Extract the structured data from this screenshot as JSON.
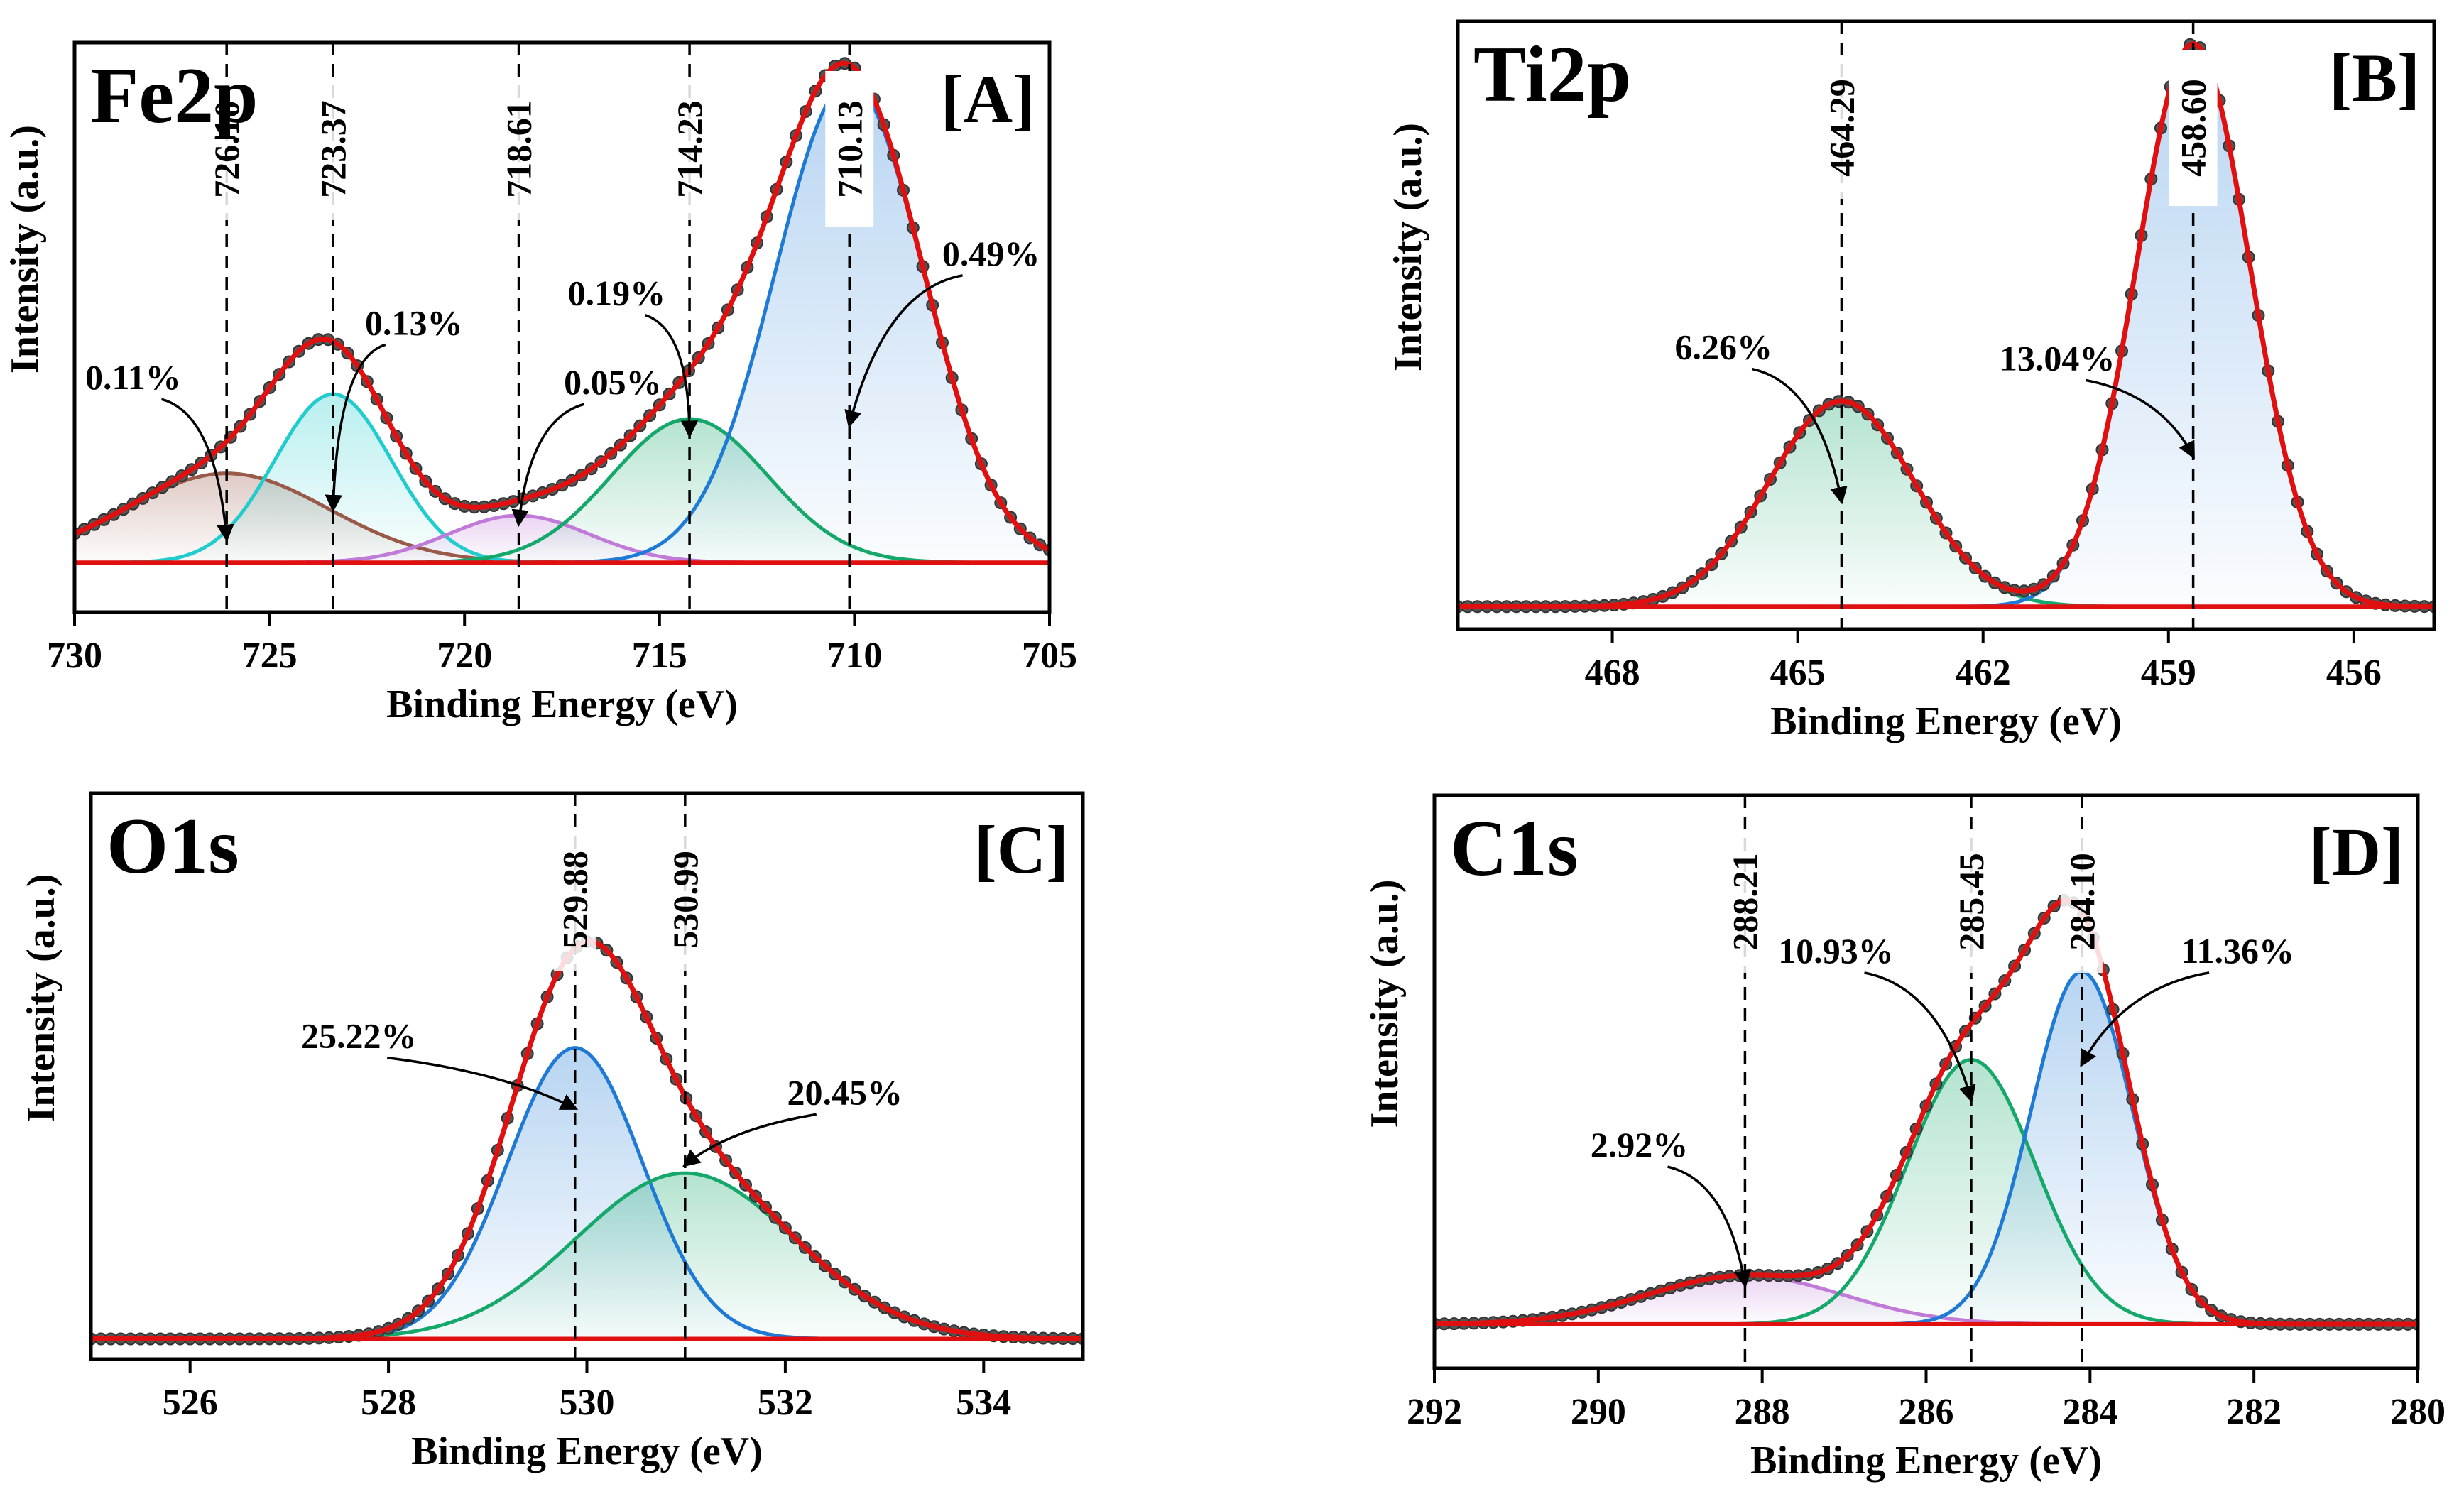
{
  "figure": {
    "background": "#ffffff"
  },
  "colors": {
    "envelope": "#e01010",
    "baseline": "#e01010",
    "data_point": "#555555",
    "axis": "#000000",
    "blue": "#1f7ad6",
    "green": "#15a86a",
    "teal": "#22cccc",
    "brown": "#9a5a4a",
    "purple": "#c07ad8"
  },
  "chart_data": [
    {
      "id": "A",
      "type": "line",
      "title": "Fe2p",
      "tag": "[A]",
      "xlabel": "Binding Energy (eV)",
      "ylabel": "Intensity (a.u.)",
      "xlim": [
        730,
        705
      ],
      "ylim": [
        -0.1,
        1.05
      ],
      "xticks": [
        730,
        725,
        720,
        715,
        710,
        705
      ],
      "tick_labels": [
        "730",
        "725",
        "720",
        "715",
        "710",
        "705"
      ],
      "baseline": 0,
      "series": [
        {
          "name": "brown",
          "color": "#9a5a4a",
          "center": 726.1,
          "amplitude": 0.18,
          "sigma": 2.6,
          "fill": true
        },
        {
          "name": "teal",
          "color": "#22cccc",
          "center": 723.37,
          "amplitude": 0.34,
          "sigma": 1.5,
          "fill": true
        },
        {
          "name": "purple",
          "color": "#c07ad8",
          "center": 718.61,
          "amplitude": 0.095,
          "sigma": 1.8,
          "fill": true
        },
        {
          "name": "green",
          "color": "#15a86a",
          "center": 714.23,
          "amplitude": 0.29,
          "sigma": 2.0,
          "fill": true
        },
        {
          "name": "blue",
          "color": "#1f7ad6",
          "center": 710.13,
          "amplitude": 0.97,
          "sigma": 1.9,
          "fill": true
        }
      ],
      "peaks": [
        {
          "energy": 726.1,
          "label": "726.10",
          "pct": "0.11%",
          "pct_x": 728.5,
          "pct_y": 0.35,
          "arrow_to_y": 0.04,
          "boxed": false
        },
        {
          "energy": 723.37,
          "label": "723.37",
          "pct": "0.13%",
          "pct_x": 721.3,
          "pct_y": 0.46,
          "arrow_to_y": 0.1,
          "boxed": false
        },
        {
          "energy": 718.61,
          "label": "718.61",
          "pct": "0.05%",
          "pct_x": 716.2,
          "pct_y": 0.34,
          "arrow_to_y": 0.07,
          "boxed": false
        },
        {
          "energy": 714.23,
          "label": "714.23",
          "pct": "0.19%",
          "pct_x": 716.1,
          "pct_y": 0.52,
          "arrow_to_y": 0.25,
          "boxed": false
        },
        {
          "energy": 710.13,
          "label": "710.13",
          "pct": "0.49%",
          "pct_x": 706.5,
          "pct_y": 0.6,
          "arrow_to_y": 0.27,
          "boxed": true
        }
      ]
    },
    {
      "id": "B",
      "type": "line",
      "title": "Ti2p",
      "tag": "[B]",
      "xlabel": "Binding Energy (eV)",
      "ylabel": "Intensity (a.u.)",
      "xlim": [
        470.5,
        454.7
      ],
      "ylim": [
        -0.04,
        1.04
      ],
      "xticks": [
        468,
        465,
        462,
        459,
        456
      ],
      "tick_labels": [
        "468",
        "465",
        "462",
        "459",
        "456"
      ],
      "baseline": 0,
      "series": [
        {
          "name": "green",
          "color": "#15a86a",
          "center": 464.29,
          "amplitude": 0.365,
          "sigma": 1.18,
          "fill": true
        },
        {
          "name": "blue",
          "color": "#1f7ad6",
          "center": 458.6,
          "amplitude": 1.0,
          "sigma": 0.92,
          "fill": true
        }
      ],
      "peaks": [
        {
          "energy": 464.29,
          "label": "464.29",
          "pct": "6.26%",
          "pct_x": 466.2,
          "pct_y": 0.44,
          "arrow_to_y": 0.18,
          "boxed": false
        },
        {
          "energy": 458.6,
          "label": "458.60",
          "pct": "13.04%",
          "pct_x": 460.8,
          "pct_y": 0.42,
          "arrow_to_y": 0.26,
          "boxed": true
        }
      ]
    },
    {
      "id": "C",
      "type": "line",
      "title": "O1s",
      "tag": "[C]",
      "xlabel": "Binding Energy (eV)",
      "ylabel": "Intensity (a.u.)",
      "xlim": [
        525,
        535
      ],
      "ylim": [
        -0.05,
        1.35
      ],
      "xticks": [
        526,
        528,
        530,
        532,
        534
      ],
      "tick_labels": [
        "526",
        "528",
        "530",
        "532",
        "534"
      ],
      "baseline": 0,
      "series": [
        {
          "name": "blue",
          "color": "#1f7ad6",
          "center": 529.88,
          "amplitude": 0.72,
          "sigma": 0.68,
          "fill": true
        },
        {
          "name": "green",
          "color": "#15a86a",
          "center": 530.99,
          "amplitude": 0.41,
          "sigma": 1.1,
          "fill": true
        }
      ],
      "peaks": [
        {
          "energy": 529.88,
          "label": "529.88",
          "pct": "25.22%",
          "pct_x": 527.7,
          "pct_y": 0.72,
          "arrow_to_y": 0.56,
          "boxed": false
        },
        {
          "energy": 530.99,
          "label": "530.99",
          "pct": "20.45%",
          "pct_x": 532.6,
          "pct_y": 0.58,
          "arrow_to_y": 0.42,
          "boxed": false
        }
      ]
    },
    {
      "id": "D",
      "type": "line",
      "title": "C1s",
      "tag": "[D]",
      "xlabel": "Binding Energy (eV)",
      "ylabel": "Intensity (a.u.)",
      "xlim": [
        292,
        280
      ],
      "ylim": [
        -0.1,
        1.2
      ],
      "xticks": [
        292,
        290,
        288,
        286,
        284,
        282,
        280
      ],
      "tick_labels": [
        "292",
        "290",
        "288",
        "286",
        "284",
        "282",
        "280"
      ],
      "baseline": 0,
      "series": [
        {
          "name": "purple",
          "color": "#c07ad8",
          "center": 288.21,
          "amplitude": 0.11,
          "sigma": 1.2,
          "fill": true
        },
        {
          "name": "green",
          "color": "#15a86a",
          "center": 285.45,
          "amplitude": 0.6,
          "sigma": 0.78,
          "fill": true
        },
        {
          "name": "blue",
          "color": "#1f7ad6",
          "center": 284.1,
          "amplitude": 0.8,
          "sigma": 0.62,
          "fill": true
        }
      ],
      "peaks": [
        {
          "energy": 288.21,
          "label": "288.21",
          "pct": "2.92%",
          "pct_x": 289.5,
          "pct_y": 0.38,
          "arrow_to_y": 0.08,
          "boxed": false
        },
        {
          "energy": 285.45,
          "label": "285.45",
          "pct": "10.93%",
          "pct_x": 287.1,
          "pct_y": 0.82,
          "arrow_to_y": 0.5,
          "boxed": false
        },
        {
          "energy": 284.1,
          "label": "284.10",
          "pct": "11.36%",
          "pct_x": 282.2,
          "pct_y": 0.82,
          "arrow_to_y": 0.58,
          "boxed": false
        }
      ]
    }
  ]
}
